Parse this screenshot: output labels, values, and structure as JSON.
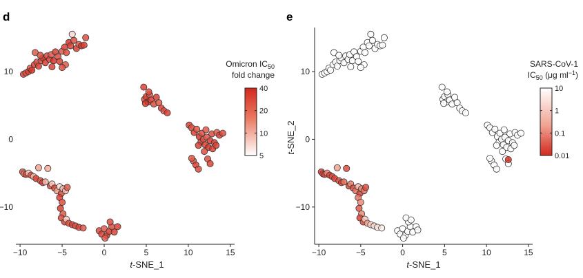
{
  "chart_data": [
    {
      "panel": "d",
      "type": "scatter",
      "xlabel_italic": "t",
      "xlabel_rest": "-SNE_1",
      "ylabel_italic": "",
      "ylabel_rest": "",
      "xlim": [
        -10.5,
        15.5
      ],
      "ylim": [
        -15.5,
        16.5
      ],
      "xticks": [
        -10,
        -5,
        0,
        5,
        10,
        15
      ],
      "yticks": [
        10,
        0,
        -10
      ],
      "xtick_labels": [
        "−10",
        "−5",
        "0",
        "5",
        "10",
        "15"
      ],
      "ytick_labels": [
        "10",
        "0",
        "−10"
      ],
      "legend": {
        "title_line1": "Omicron IC",
        "title_sub": "50",
        "title_line2": "fold change",
        "ticks": [
          "40",
          "20",
          "10",
          "5"
        ],
        "colors": [
          "#d2281e",
          "#ffffff"
        ]
      },
      "color_scale": {
        "low": "#ffffff",
        "mid": "#f3a38f",
        "high": "#d2281e"
      },
      "points": [
        [
          -9.6,
          9.6,
          0.9
        ],
        [
          -9.3,
          9.8,
          0.85
        ],
        [
          -9.0,
          10.0,
          0.9
        ],
        [
          -8.8,
          10.5,
          0.8
        ],
        [
          -8.6,
          10.2,
          0.95
        ],
        [
          -8.3,
          11.0,
          0.9
        ],
        [
          -8.0,
          11.4,
          0.85
        ],
        [
          -7.8,
          10.8,
          0.9
        ],
        [
          -7.5,
          11.6,
          0.8
        ],
        [
          -7.3,
          12.0,
          0.95
        ],
        [
          -7.0,
          11.3,
          0.9
        ],
        [
          -6.8,
          12.3,
          0.85
        ],
        [
          -6.5,
          11.8,
          0.9
        ],
        [
          -6.3,
          12.5,
          0.8
        ],
        [
          -6.0,
          11.6,
          0.95
        ],
        [
          -5.8,
          12.9,
          0.9
        ],
        [
          -5.5,
          12.2,
          0.85
        ],
        [
          -5.3,
          11.5,
          0.9
        ],
        [
          -5.0,
          13.0,
          0.8
        ],
        [
          -4.7,
          13.6,
          0.9
        ],
        [
          -4.5,
          12.8,
          0.85
        ],
        [
          -4.2,
          14.3,
          0.95
        ],
        [
          -4.0,
          13.8,
          0.9
        ],
        [
          -3.8,
          15.5,
          0.2
        ],
        [
          -3.6,
          14.6,
          0.85
        ],
        [
          -3.3,
          13.4,
          0.9
        ],
        [
          -3.0,
          14.0,
          0.8
        ],
        [
          -2.7,
          13.8,
          0.95
        ],
        [
          -2.4,
          13.9,
          0.9
        ],
        [
          -2.2,
          15.0,
          0.85
        ],
        [
          -8.2,
          12.8,
          0.8
        ],
        [
          -7.6,
          12.4,
          0.85
        ],
        [
          -4.6,
          11.0,
          0.8
        ],
        [
          -6.2,
          10.7,
          0.9
        ],
        [
          -5.0,
          10.6,
          0.85
        ],
        [
          4.7,
          7.7,
          0.9
        ],
        [
          4.8,
          5.9,
          0.85
        ],
        [
          5.0,
          6.3,
          0.9
        ],
        [
          5.2,
          5.5,
          0.95
        ],
        [
          5.4,
          6.6,
          0.8
        ],
        [
          5.6,
          5.8,
          0.9
        ],
        [
          5.9,
          5.2,
          0.85
        ],
        [
          6.2,
          6.2,
          0.9
        ],
        [
          6.5,
          5.4,
          0.8
        ],
        [
          6.8,
          4.6,
          0.9
        ],
        [
          7.1,
          4.2,
          0.85
        ],
        [
          7.5,
          3.9,
          0.9
        ],
        [
          4.9,
          5.3,
          0.95
        ],
        [
          5.3,
          7.0,
          0.85
        ],
        [
          10.1,
          2.1,
          0.9
        ],
        [
          10.4,
          1.7,
          0.85
        ],
        [
          10.7,
          1.0,
          0.9
        ],
        [
          11.0,
          1.5,
          0.8
        ],
        [
          11.3,
          0.4,
          0.95
        ],
        [
          11.5,
          -0.4,
          0.9
        ],
        [
          11.8,
          0.0,
          0.85
        ],
        [
          12.0,
          -0.8,
          0.9
        ],
        [
          12.2,
          0.3,
          0.8
        ],
        [
          12.4,
          -1.2,
          0.95
        ],
        [
          12.6,
          -0.2,
          0.9
        ],
        [
          12.8,
          0.8,
          0.85
        ],
        [
          13.1,
          -0.5,
          0.9
        ],
        [
          13.4,
          1.0,
          0.8
        ],
        [
          13.7,
          0.6,
          0.9
        ],
        [
          14.1,
          0.9,
          0.85
        ],
        [
          11.2,
          -0.9,
          0.9
        ],
        [
          11.6,
          0.9,
          0.85
        ],
        [
          12.1,
          1.4,
          0.8
        ],
        [
          12.9,
          -1.4,
          0.9
        ],
        [
          12.3,
          -2.9,
          0.85
        ],
        [
          12.6,
          -3.6,
          0.9
        ],
        [
          10.6,
          -3.2,
          0.8
        ],
        [
          10.9,
          -3.8,
          0.9
        ],
        [
          11.2,
          -4.4,
          0.85
        ],
        [
          13.3,
          -0.9,
          0.9
        ],
        [
          11.9,
          -1.8,
          0.85
        ],
        [
          10.4,
          -2.8,
          0.8
        ],
        [
          -9.7,
          -4.8,
          0.85
        ],
        [
          -9.5,
          -5.1,
          0.6
        ],
        [
          -9.3,
          -5.2,
          0.9
        ],
        [
          -9.0,
          -5.0,
          0.3
        ],
        [
          -8.7,
          -5.3,
          0.85
        ],
        [
          -8.4,
          -5.5,
          0.4
        ],
        [
          -8.1,
          -5.8,
          0.9
        ],
        [
          -7.8,
          -4.2,
          0.5
        ],
        [
          -7.6,
          -6.1,
          0.85
        ],
        [
          -7.3,
          -6.4,
          0.9
        ],
        [
          -7.0,
          -6.3,
          0.4
        ],
        [
          -6.7,
          -4.3,
          0.45
        ],
        [
          -6.4,
          -6.9,
          0.85
        ],
        [
          -6.2,
          -6.6,
          0.3
        ],
        [
          -5.9,
          -7.2,
          0.9
        ],
        [
          -5.6,
          -7.6,
          0.5
        ],
        [
          -5.3,
          -7.0,
          0.2
        ],
        [
          -5.1,
          -8.0,
          0.85
        ],
        [
          -4.9,
          -7.3,
          0.35
        ],
        [
          -4.6,
          -7.6,
          0.4
        ],
        [
          -4.4,
          -7.1,
          0.8
        ],
        [
          -5.3,
          -8.6,
          0.9
        ],
        [
          -5.0,
          -9.3,
          0.85
        ],
        [
          -5.2,
          -10.2,
          0.9
        ],
        [
          -4.9,
          -11.0,
          0.8
        ],
        [
          -5.1,
          -11.6,
          0.85
        ],
        [
          -4.7,
          -12.2,
          0.9
        ],
        [
          -4.5,
          -11.8,
          0.3
        ],
        [
          -4.2,
          -12.4,
          0.85
        ],
        [
          -3.8,
          -12.6,
          0.9
        ],
        [
          -3.4,
          -12.8,
          0.85
        ],
        [
          -3.0,
          -13.0,
          0.9
        ],
        [
          -2.5,
          -13.1,
          0.8
        ],
        [
          -0.6,
          -13.5,
          0.85
        ],
        [
          -0.3,
          -14.0,
          0.9
        ],
        [
          0.0,
          -13.2,
          0.8
        ],
        [
          0.3,
          -14.2,
          0.95
        ],
        [
          0.6,
          -13.6,
          0.9
        ],
        [
          0.9,
          -12.9,
          0.85
        ],
        [
          1.2,
          -13.7,
          0.9
        ],
        [
          0.1,
          -14.6,
          0.8
        ],
        [
          0.7,
          -12.2,
          0.85
        ],
        [
          1.6,
          -12.9,
          0.9
        ]
      ]
    },
    {
      "panel": "e",
      "type": "scatter",
      "xlabel_italic": "t",
      "xlabel_rest": "-SNE_1",
      "ylabel_italic": "t",
      "ylabel_rest": "-SNE_2",
      "xlim": [
        -10.5,
        15.5
      ],
      "ylim": [
        -15.5,
        16.5
      ],
      "xticks": [
        -10,
        -5,
        0,
        5,
        10,
        15
      ],
      "yticks": [
        10,
        0,
        -10
      ],
      "xtick_labels": [
        "−10",
        "−5",
        "0",
        "5",
        "10",
        "15"
      ],
      "ytick_labels": [
        "10",
        "0",
        "−10"
      ],
      "legend": {
        "title_line1": "SARS-CoV-1",
        "title_line2a": "IC",
        "title_sub": "50",
        "title_line2b": " (μg ml",
        "title_sup": "−1",
        "title_line2c": ")",
        "ticks": [
          "10",
          "1",
          "0.1",
          "0.01"
        ],
        "colors": [
          "#ffffff",
          "#d2281e"
        ]
      },
      "color_scale": {
        "low": "#ffffff",
        "mid": "#f3a38f",
        "high": "#d2281e"
      },
      "points": [
        [
          -9.6,
          9.6,
          0.0
        ],
        [
          -9.3,
          9.8,
          0.0
        ],
        [
          -9.0,
          10.0,
          0.0
        ],
        [
          -8.8,
          10.5,
          0.0
        ],
        [
          -8.6,
          10.2,
          0.0
        ],
        [
          -8.3,
          11.0,
          0.0
        ],
        [
          -8.0,
          11.4,
          0.0
        ],
        [
          -7.8,
          10.8,
          0.0
        ],
        [
          -7.5,
          11.6,
          0.0
        ],
        [
          -7.3,
          12.0,
          0.0
        ],
        [
          -7.0,
          11.3,
          0.0
        ],
        [
          -6.8,
          12.3,
          0.0
        ],
        [
          -6.5,
          11.8,
          0.0
        ],
        [
          -6.3,
          12.5,
          0.0
        ],
        [
          -6.0,
          11.6,
          0.0
        ],
        [
          -5.8,
          12.9,
          0.0
        ],
        [
          -5.5,
          12.2,
          0.0
        ],
        [
          -5.3,
          11.5,
          0.0
        ],
        [
          -5.0,
          13.0,
          0.0
        ],
        [
          -4.7,
          13.6,
          0.0
        ],
        [
          -4.5,
          12.8,
          0.0
        ],
        [
          -4.2,
          14.3,
          0.0
        ],
        [
          -4.0,
          13.8,
          0.0
        ],
        [
          -3.8,
          15.5,
          0.0
        ],
        [
          -3.6,
          14.6,
          0.0
        ],
        [
          -3.3,
          13.4,
          0.0
        ],
        [
          -3.0,
          14.0,
          0.0
        ],
        [
          -2.7,
          13.8,
          0.0
        ],
        [
          -2.4,
          13.9,
          0.0
        ],
        [
          -2.2,
          15.0,
          0.0
        ],
        [
          -8.2,
          12.8,
          0.0
        ],
        [
          -7.6,
          12.4,
          0.0
        ],
        [
          -4.6,
          11.0,
          0.0
        ],
        [
          -6.2,
          10.7,
          0.0
        ],
        [
          -5.0,
          10.6,
          0.0
        ],
        [
          4.7,
          7.7,
          0.0
        ],
        [
          4.8,
          5.9,
          0.0
        ],
        [
          5.0,
          6.3,
          0.0
        ],
        [
          5.2,
          5.5,
          0.0
        ],
        [
          5.4,
          6.6,
          0.0
        ],
        [
          5.6,
          5.8,
          0.0
        ],
        [
          5.9,
          5.2,
          0.0
        ],
        [
          6.2,
          6.2,
          0.0
        ],
        [
          6.5,
          5.4,
          0.0
        ],
        [
          6.8,
          4.6,
          0.0
        ],
        [
          7.1,
          4.2,
          0.0
        ],
        [
          7.5,
          3.9,
          0.0
        ],
        [
          4.9,
          5.3,
          0.0
        ],
        [
          5.3,
          7.0,
          0.0
        ],
        [
          10.1,
          2.1,
          0.0
        ],
        [
          10.4,
          1.7,
          0.0
        ],
        [
          10.7,
          1.0,
          0.0
        ],
        [
          11.0,
          1.5,
          0.0
        ],
        [
          11.3,
          0.4,
          0.0
        ],
        [
          11.5,
          -0.4,
          0.0
        ],
        [
          11.8,
          0.0,
          0.0
        ],
        [
          12.0,
          -0.8,
          0.0
        ],
        [
          12.2,
          0.3,
          0.0
        ],
        [
          12.4,
          -1.2,
          0.0
        ],
        [
          12.6,
          -0.2,
          0.0
        ],
        [
          12.8,
          0.8,
          0.0
        ],
        [
          13.1,
          -0.5,
          0.0
        ],
        [
          13.4,
          1.0,
          0.0
        ],
        [
          13.7,
          0.6,
          0.0
        ],
        [
          14.1,
          0.9,
          0.0
        ],
        [
          11.2,
          -0.9,
          0.0
        ],
        [
          11.6,
          0.9,
          0.0
        ],
        [
          12.1,
          1.4,
          0.0
        ],
        [
          12.9,
          -1.4,
          0.0
        ],
        [
          12.3,
          -2.9,
          0.0
        ],
        [
          12.6,
          -3.6,
          0.0
        ],
        [
          10.6,
          -3.2,
          0.0
        ],
        [
          10.9,
          -3.8,
          0.0
        ],
        [
          11.2,
          -4.4,
          0.0
        ],
        [
          13.3,
          -0.9,
          0.0
        ],
        [
          11.9,
          -1.8,
          0.0
        ],
        [
          10.4,
          -2.8,
          0.0
        ],
        [
          12.6,
          -3.0,
          0.95
        ],
        [
          -9.7,
          -4.8,
          0.9
        ],
        [
          -9.5,
          -5.1,
          0.85
        ],
        [
          -9.3,
          -5.2,
          0.9
        ],
        [
          -9.0,
          -5.0,
          0.6
        ],
        [
          -8.7,
          -5.3,
          0.9
        ],
        [
          -8.4,
          -5.5,
          0.85
        ],
        [
          -8.1,
          -5.8,
          0.9
        ],
        [
          -7.8,
          -4.2,
          0.5
        ],
        [
          -7.6,
          -6.1,
          0.85
        ],
        [
          -7.3,
          -6.4,
          0.9
        ],
        [
          -7.0,
          -6.3,
          0.7
        ],
        [
          -6.7,
          -4.3,
          0.85
        ],
        [
          -6.4,
          -6.9,
          0.9
        ],
        [
          -6.2,
          -6.6,
          0.6
        ],
        [
          -5.9,
          -7.2,
          0.85
        ],
        [
          -5.6,
          -7.6,
          0.7
        ],
        [
          -5.3,
          -7.0,
          0.4
        ],
        [
          -5.1,
          -8.0,
          0.9
        ],
        [
          -4.9,
          -7.3,
          0.6
        ],
        [
          -4.6,
          -7.6,
          0.7
        ],
        [
          -4.4,
          -7.1,
          0.85
        ],
        [
          -5.3,
          -8.6,
          0.7
        ],
        [
          -5.0,
          -9.3,
          0.6
        ],
        [
          -5.2,
          -10.2,
          0.8
        ],
        [
          -4.9,
          -11.0,
          0.6
        ],
        [
          -5.1,
          -11.6,
          0.9
        ],
        [
          -4.7,
          -12.2,
          0.85
        ],
        [
          -4.5,
          -11.8,
          0.3
        ],
        [
          -4.2,
          -12.4,
          0.5
        ],
        [
          -3.8,
          -12.6,
          0.25
        ],
        [
          -3.4,
          -12.8,
          0.2
        ],
        [
          -3.0,
          -13.0,
          0.15
        ],
        [
          -2.5,
          -13.1,
          0.1
        ],
        [
          -0.6,
          -13.5,
          0.0
        ],
        [
          -0.3,
          -14.0,
          0.0
        ],
        [
          0.0,
          -13.2,
          0.0
        ],
        [
          0.3,
          -14.2,
          0.0
        ],
        [
          0.6,
          -13.6,
          0.0
        ],
        [
          0.9,
          -12.9,
          0.0
        ],
        [
          1.2,
          -13.7,
          0.0
        ],
        [
          0.1,
          -14.6,
          0.0
        ],
        [
          0.7,
          -12.2,
          0.0
        ],
        [
          1.6,
          -12.9,
          0.0
        ],
        [
          0.4,
          -11.6,
          0.0
        ],
        [
          1.0,
          -11.9,
          0.0
        ],
        [
          1.8,
          -13.4,
          0.0
        ]
      ]
    }
  ]
}
